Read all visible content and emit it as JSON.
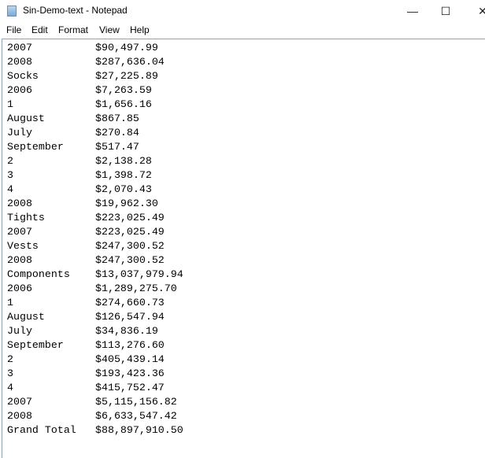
{
  "window": {
    "title": "Sin-Demo-text - Notepad",
    "minimize": "—",
    "maximize": "☐",
    "close": "✕"
  },
  "menu": [
    "File",
    "Edit",
    "Format",
    "View",
    "Help"
  ],
  "lines": [
    {
      "label": "2007",
      "value": "$90,497.99"
    },
    {
      "label": "2008",
      "value": "$287,636.04"
    },
    {
      "label": "Socks",
      "value": "$27,225.89"
    },
    {
      "label": "2006",
      "value": "$7,263.59"
    },
    {
      "label": "1",
      "value": "$1,656.16"
    },
    {
      "label": "August",
      "value": "$867.85"
    },
    {
      "label": "July",
      "value": "$270.84"
    },
    {
      "label": "September",
      "value": "$517.47"
    },
    {
      "label": "2",
      "value": "$2,138.28"
    },
    {
      "label": "3",
      "value": "$1,398.72"
    },
    {
      "label": "4",
      "value": "$2,070.43"
    },
    {
      "label": "2008",
      "value": "$19,962.30"
    },
    {
      "label": "Tights",
      "value": "$223,025.49"
    },
    {
      "label": "2007",
      "value": "$223,025.49"
    },
    {
      "label": "Vests",
      "value": "$247,300.52"
    },
    {
      "label": "2008",
      "value": "$247,300.52"
    },
    {
      "label": "Components",
      "value": "$13,037,979.94"
    },
    {
      "label": "2006",
      "value": "$1,289,275.70"
    },
    {
      "label": "1",
      "value": "$274,660.73"
    },
    {
      "label": "August",
      "value": "$126,547.94"
    },
    {
      "label": "July",
      "value": "$34,836.19"
    },
    {
      "label": "September",
      "value": "$113,276.60"
    },
    {
      "label": "2",
      "value": "$405,439.14"
    },
    {
      "label": "3",
      "value": "$193,423.36"
    },
    {
      "label": "4",
      "value": "$415,752.47"
    },
    {
      "label": "2007",
      "value": "$5,115,156.82"
    },
    {
      "label": "2008",
      "value": "$6,633,547.42"
    },
    {
      "label": "Grand Total",
      "value": "$88,897,910.50"
    }
  ]
}
